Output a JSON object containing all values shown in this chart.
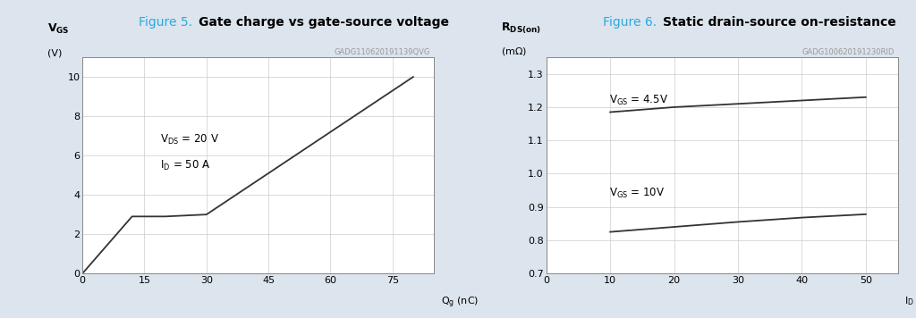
{
  "fig1": {
    "title_prefix": "Figure 5. ",
    "title_bold": "Gate charge vs gate-source voltage",
    "watermark": "GADG110620191139QVG",
    "curve_x": [
      0,
      12,
      20,
      30,
      80
    ],
    "curve_y": [
      0,
      2.9,
      2.9,
      3.0,
      10.0
    ],
    "xlim": [
      0,
      85
    ],
    "ylim": [
      0,
      11
    ],
    "xticks": [
      0,
      15,
      30,
      45,
      60,
      75
    ],
    "yticks": [
      0,
      2,
      4,
      6,
      8,
      10
    ],
    "grid_color": "#cccccc",
    "line_color": "#333333",
    "background": "#ffffff"
  },
  "fig2": {
    "title_prefix": "Figure 6. ",
    "title_bold": "Static drain-source on-resistance",
    "watermark": "GADG100620191230RID",
    "curve1_x": [
      10,
      20,
      30,
      40,
      50
    ],
    "curve1_y": [
      1.185,
      1.2,
      1.21,
      1.22,
      1.23
    ],
    "curve2_x": [
      10,
      20,
      30,
      40,
      50
    ],
    "curve2_y": [
      0.825,
      0.84,
      0.855,
      0.868,
      0.878
    ],
    "xlim": [
      0,
      55
    ],
    "ylim": [
      0.7,
      1.35
    ],
    "xticks": [
      0,
      10,
      20,
      30,
      40,
      50
    ],
    "yticks": [
      0.7,
      0.8,
      0.9,
      1.0,
      1.1,
      1.2,
      1.3
    ],
    "grid_color": "#cccccc",
    "line_color": "#333333",
    "background": "#ffffff"
  },
  "title_color": "#29abe2",
  "outer_bg": "#dce4ed"
}
